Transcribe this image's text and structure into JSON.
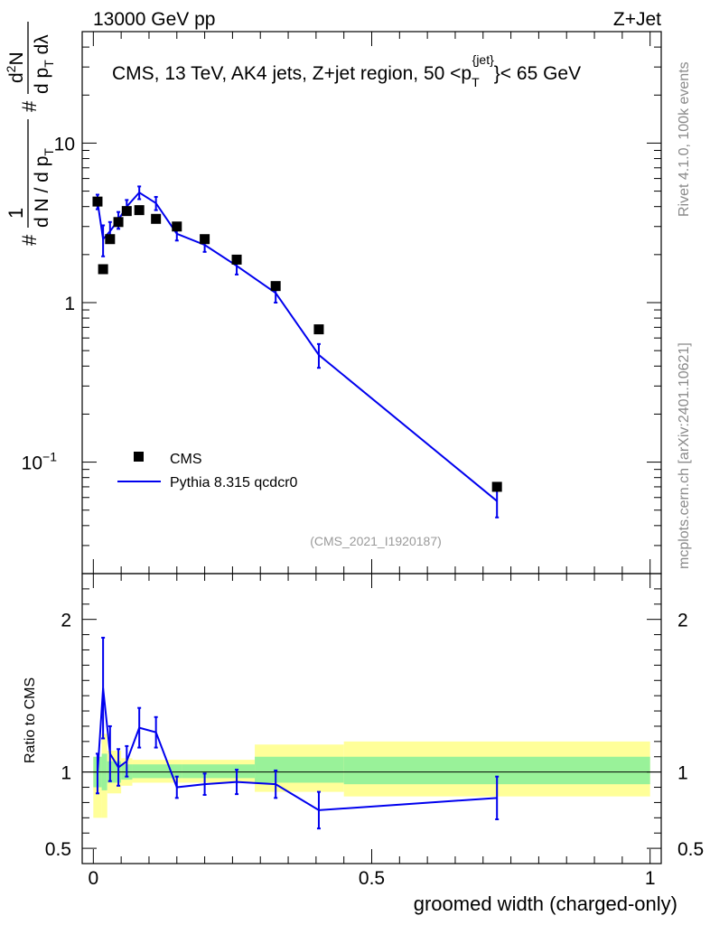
{
  "header": {
    "left": "13000 GeV pp",
    "right": "Z+Jet",
    "title": "CMS, 13 TeV, AK4 jets, Z+jet region, 50 <p",
    "title_sup": "{jet}",
    "title_sub": "T",
    "title_end": "}< 65 GeV"
  },
  "side": {
    "rivet": "Rivet 4.1.0,  100k events",
    "mcplots": "mcplots.cern.ch [arXiv:2401.10621]"
  },
  "analysis_label": "(CMS_2021_I1920187)",
  "legend": {
    "data": "CMS",
    "mc": "Pythia 8.315 qcdcr0"
  },
  "main_ylabel": {
    "a": "#",
    "b": "1",
    "c": "d N / d p",
    "c_sub": "T",
    "d": "#",
    "e": "d",
    "e_sup": "2",
    "e2": "N",
    "f": "d p",
    "f_sub": "T",
    "g": " dλ"
  },
  "ratio_ylabel": "Ratio to CMS",
  "xlabel": "groomed width (charged-only)",
  "main_ticks": [
    {
      "v": 10,
      "label": "10"
    },
    {
      "v": 1,
      "label": "1"
    },
    {
      "v": 0.1,
      "label": "10",
      "sup": "−1"
    }
  ],
  "ratio_ticks": [
    {
      "v": 2,
      "label": "2"
    },
    {
      "v": 1,
      "label": "1"
    },
    {
      "v": 0.5,
      "label": "0.5"
    }
  ],
  "x_ticks": [
    {
      "v": 0,
      "label": "0"
    },
    {
      "v": 0.5,
      "label": "0.5"
    },
    {
      "v": 1,
      "label": "1"
    }
  ],
  "colors": {
    "mc": "#0000ee",
    "data": "#000000",
    "band_inner": "#99f299",
    "band_outer": "#ffff99"
  },
  "chart_data": {
    "type": "scatter",
    "xlim": [
      -0.02,
      1.02
    ],
    "ylim": [
      0.02,
      50
    ],
    "yscale": "log",
    "ratio_ylim": [
      0.4,
      2.3
    ],
    "cms": {
      "x": [
        0.0075,
        0.0175,
        0.03,
        0.045,
        0.06,
        0.0825,
        0.1125,
        0.15,
        0.2,
        0.2575,
        0.3275,
        0.405,
        0.725
      ],
      "y": [
        4.3,
        1.62,
        2.5,
        3.2,
        3.75,
        3.8,
        3.35,
        3.0,
        2.5,
        1.86,
        1.27,
        0.68,
        0.07
      ]
    },
    "pythia": {
      "x": [
        0.0075,
        0.0175,
        0.03,
        0.045,
        0.06,
        0.0825,
        0.1125,
        0.15,
        0.2,
        0.2575,
        0.3275,
        0.405,
        0.725
      ],
      "y": [
        4.3,
        2.5,
        2.8,
        3.3,
        4.0,
        4.9,
        4.2,
        2.7,
        2.3,
        1.7,
        1.15,
        0.47,
        0.057
      ],
      "err": [
        0.45,
        0.55,
        0.4,
        0.4,
        0.4,
        0.45,
        0.4,
        0.25,
        0.22,
        0.2,
        0.15,
        0.08,
        0.012
      ]
    },
    "ratio": {
      "x": [
        0.0075,
        0.0175,
        0.03,
        0.045,
        0.06,
        0.0825,
        0.1125,
        0.15,
        0.2,
        0.2575,
        0.3275,
        0.405,
        0.725
      ],
      "y": [
        0.99,
        1.55,
        1.12,
        1.03,
        1.07,
        1.29,
        1.26,
        0.9,
        0.92,
        0.935,
        0.92,
        0.75,
        0.83
      ],
      "err": [
        0.13,
        0.33,
        0.18,
        0.12,
        0.1,
        0.13,
        0.1,
        0.07,
        0.07,
        0.08,
        0.09,
        0.12,
        0.14
      ]
    },
    "bands": [
      {
        "x0": 0.0,
        "x1": 0.015,
        "in_lo": 0.9,
        "in_hi": 1.1,
        "out_lo": 0.7,
        "out_hi": 1.1
      },
      {
        "x0": 0.015,
        "x1": 0.025,
        "in_lo": 0.88,
        "in_hi": 1.12,
        "out_lo": 0.7,
        "out_hi": 1.25
      },
      {
        "x0": 0.025,
        "x1": 0.05,
        "in_lo": 0.93,
        "in_hi": 1.07,
        "out_lo": 0.86,
        "out_hi": 1.14
      },
      {
        "x0": 0.05,
        "x1": 0.07,
        "in_lo": 0.95,
        "in_hi": 1.05,
        "out_lo": 0.91,
        "out_hi": 1.09
      },
      {
        "x0": 0.07,
        "x1": 0.16,
        "in_lo": 0.96,
        "in_hi": 1.05,
        "out_lo": 0.93,
        "out_hi": 1.08
      },
      {
        "x0": 0.16,
        "x1": 0.29,
        "in_lo": 0.96,
        "in_hi": 1.05,
        "out_lo": 0.93,
        "out_hi": 1.08
      },
      {
        "x0": 0.29,
        "x1": 0.45,
        "in_lo": 0.93,
        "in_hi": 1.1,
        "out_lo": 0.87,
        "out_hi": 1.18
      },
      {
        "x0": 0.45,
        "x1": 1.0,
        "in_lo": 0.92,
        "in_hi": 1.1,
        "out_lo": 0.84,
        "out_hi": 1.2
      }
    ]
  }
}
